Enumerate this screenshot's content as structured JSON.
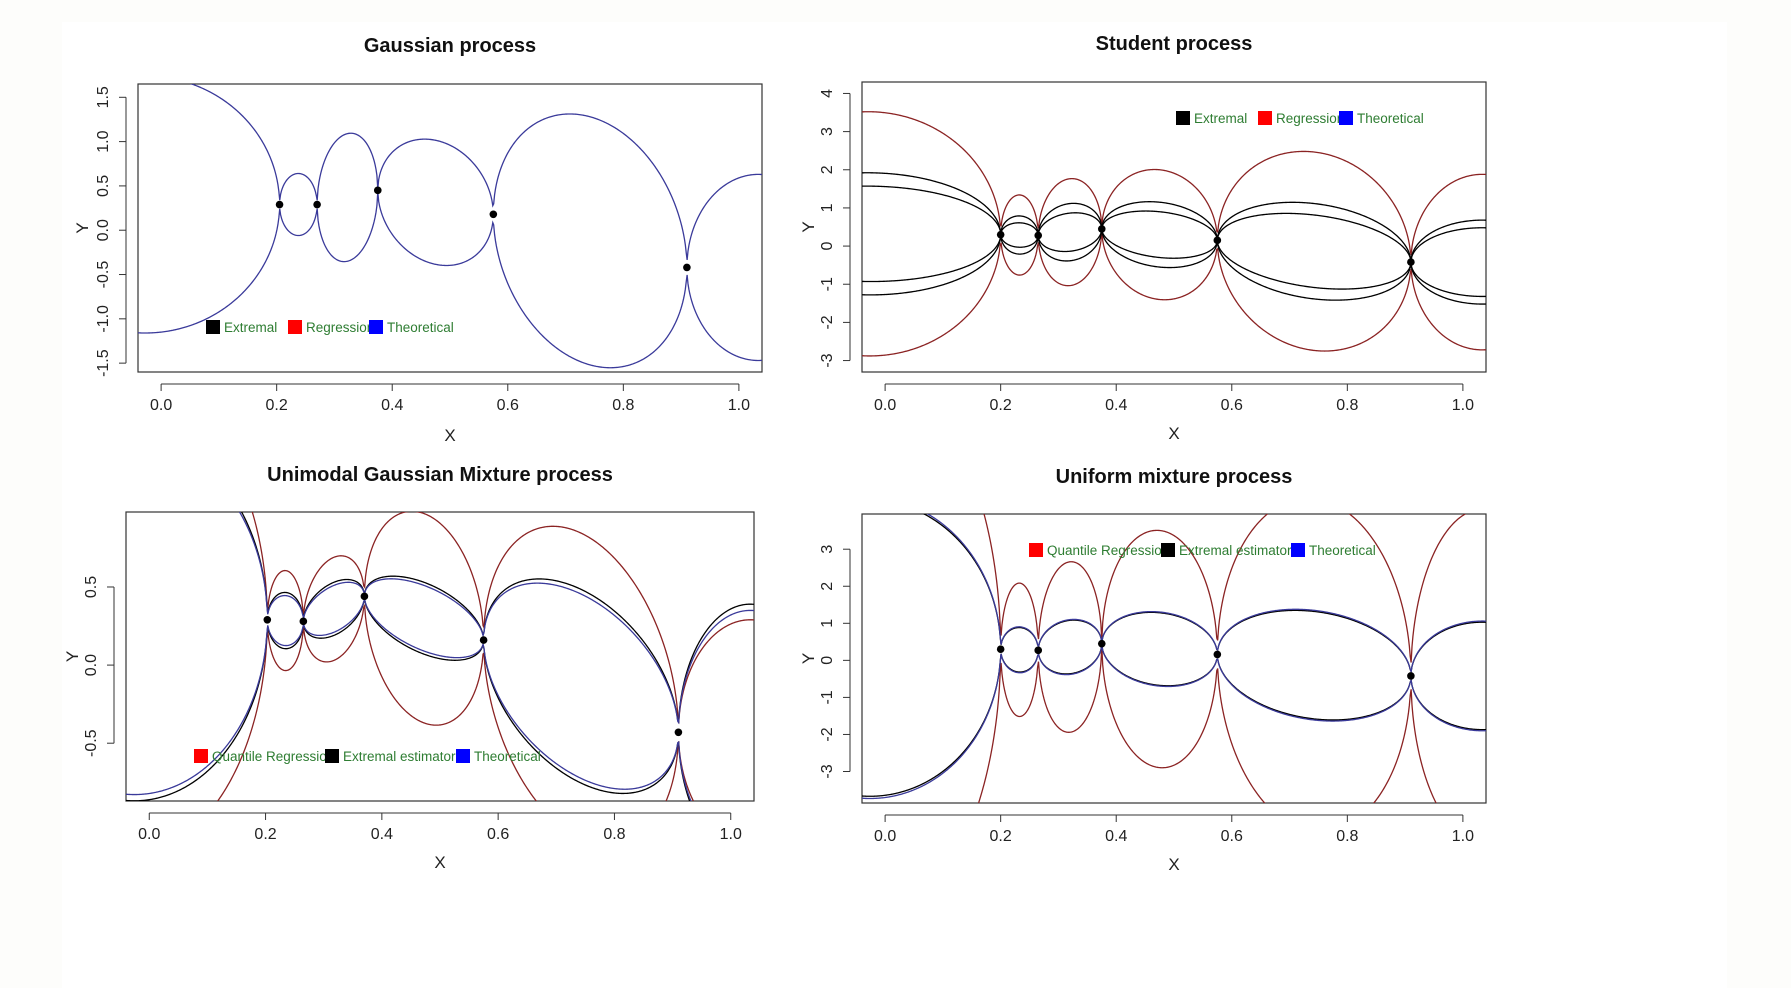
{
  "colors": {
    "extremal": "#000000",
    "regression": "#8b2323",
    "regression_key": "#ff0000",
    "theoretical": "#3a3a9a",
    "theoretical_key": "#0000ff",
    "legend_text": "#2e7d32",
    "points": "#000000"
  },
  "chart_data": [
    {
      "id": "gaussian",
      "type": "line",
      "title": "Gaussian process",
      "xlabel": "X",
      "ylabel": "Y",
      "xlim": [
        -0.04,
        1.04
      ],
      "ylim": [
        -1.6,
        1.65
      ],
      "xticks": [
        "0.0",
        "0.2",
        "0.4",
        "0.6",
        "0.8",
        "1.0"
      ],
      "xtick_values": [
        0,
        0.2,
        0.4,
        0.6,
        0.8,
        1.0
      ],
      "yticks": [
        "-1.5",
        "-1.0",
        "-0.5",
        "0.0",
        "0.5",
        "1.0",
        "1.5"
      ],
      "ytick_values": [
        -1.5,
        -1.0,
        -0.5,
        0.0,
        0.5,
        1.0,
        1.5
      ],
      "legend": [
        "Extremal",
        "Regression",
        "Theoretical"
      ],
      "legend_placement": "bottom-left",
      "points": {
        "x": [
          0.205,
          0.27,
          0.375,
          0.575,
          0.91
        ],
        "y": [
          0.29,
          0.29,
          0.45,
          0.18,
          -0.42
        ]
      },
      "bands": [
        {
          "series": "Theoretical",
          "offsets": [
            -1.45,
            -0.35,
            -0.72,
            -0.7,
            -1.4,
            -1.05
          ],
          "dashed": false
        }
      ],
      "band_series": [
        {
          "name": "Theoretical",
          "color_key": "theoretical"
        },
        {
          "name": "Extremal",
          "color_key": "extremal"
        },
        {
          "name": "Regression",
          "color_key": "regression"
        }
      ]
    },
    {
      "id": "student",
      "type": "line",
      "title": "Student process",
      "xlabel": "X",
      "ylabel": "Y",
      "xlim": [
        -0.04,
        1.04
      ],
      "ylim": [
        -3.3,
        4.3
      ],
      "xticks": [
        "0.0",
        "0.2",
        "0.4",
        "0.6",
        "0.8",
        "1.0"
      ],
      "xtick_values": [
        0,
        0.2,
        0.4,
        0.6,
        0.8,
        1.0
      ],
      "yticks": [
        "-3",
        "-2",
        "-1",
        "0",
        "1",
        "2",
        "3",
        "4"
      ],
      "ytick_values": [
        -3,
        -2,
        -1,
        0,
        1,
        2,
        3,
        4
      ],
      "legend": [
        "Extremal",
        "Regression",
        "Theoretical"
      ],
      "legend_placement": "top-right",
      "points": {
        "x": [
          0.2,
          0.265,
          0.375,
          0.575,
          0.91
        ],
        "y": [
          0.3,
          0.28,
          0.45,
          0.15,
          -0.42
        ]
      },
      "bands": [
        {
          "series": "Regression",
          "offsets": [
            -3.2,
            -1.05,
            -1.4,
            -1.7,
            -2.6,
            -2.3
          ]
        },
        {
          "series": "Extremal",
          "offsets": [
            -1.6,
            -0.5,
            -0.75,
            -0.85,
            -1.25,
            -1.1
          ]
        },
        {
          "series": "Extremal",
          "offsets": [
            -1.25,
            -0.32,
            -0.5,
            -0.6,
            -0.95,
            -0.9
          ]
        }
      ]
    },
    {
      "id": "unimodal",
      "type": "line",
      "title": "Unimodal Gaussian Mixture process",
      "xlabel": "X",
      "ylabel": "Y",
      "xlim": [
        -0.04,
        1.04
      ],
      "ylim": [
        -0.87,
        0.98
      ],
      "xticks": [
        "0.0",
        "0.2",
        "0.4",
        "0.6",
        "0.8",
        "1.0"
      ],
      "xtick_values": [
        0,
        0.2,
        0.4,
        0.6,
        0.8,
        1.0
      ],
      "yticks": [
        "-0.5",
        "0.0",
        "0.5"
      ],
      "ytick_values": [
        -0.5,
        0.0,
        0.5
      ],
      "legend": [
        "Quantile Regression",
        "Extremal estimator",
        "Theoretical"
      ],
      "legend_placement": "bottom-left",
      "points": {
        "x": [
          0.203,
          0.265,
          0.37,
          0.575,
          0.91
        ],
        "y": [
          0.29,
          0.28,
          0.44,
          0.16,
          -0.43
        ]
      },
      "bands": [
        {
          "series": "Regression",
          "offsets": [
            -1.5,
            -0.32,
            -0.33,
            -0.67,
            -0.98,
            -0.72
          ]
        },
        {
          "series": "Extremal",
          "offsets": [
            -1.17,
            -0.18,
            -0.17,
            -0.23,
            -0.62,
            -0.82
          ]
        },
        {
          "series": "Theoretical",
          "offsets": [
            -1.13,
            -0.16,
            -0.15,
            -0.21,
            -0.59,
            -0.78
          ]
        }
      ]
    },
    {
      "id": "uniform",
      "type": "line",
      "title": "Uniform mixture process",
      "xlabel": "X",
      "ylabel": "Y",
      "xlim": [
        -0.04,
        1.04
      ],
      "ylim": [
        -3.85,
        3.95
      ],
      "xticks": [
        "0.0",
        "0.2",
        "0.4",
        "0.6",
        "0.8",
        "1.0"
      ],
      "xtick_values": [
        0,
        0.2,
        0.4,
        0.6,
        0.8,
        1.0
      ],
      "yticks": [
        "-3",
        "-2",
        "-1",
        "0",
        "1",
        "2",
        "3"
      ],
      "ytick_values": [
        -3,
        -2,
        -1,
        0,
        1,
        2,
        3
      ],
      "legend": [
        "Quantile Regression",
        "Extremal estimator",
        "Theoretical"
      ],
      "legend_placement": "top-center",
      "points": {
        "x": [
          0.2,
          0.265,
          0.375,
          0.575,
          0.91
        ],
        "y": [
          0.3,
          0.27,
          0.45,
          0.16,
          -0.42
        ]
      },
      "bands": [
        {
          "series": "Regression",
          "offsets": [
            -7.5,
            -1.8,
            -2.3,
            -3.2,
            -4.5,
            -4.5
          ]
        },
        {
          "series": "Extremal",
          "offsets": [
            -4.0,
            -0.6,
            -0.72,
            -0.98,
            -1.45,
            -1.45
          ]
        },
        {
          "series": "Theoretical",
          "offsets": [
            -4.06,
            -0.62,
            -0.74,
            -1.0,
            -1.48,
            -1.48
          ]
        }
      ]
    }
  ]
}
